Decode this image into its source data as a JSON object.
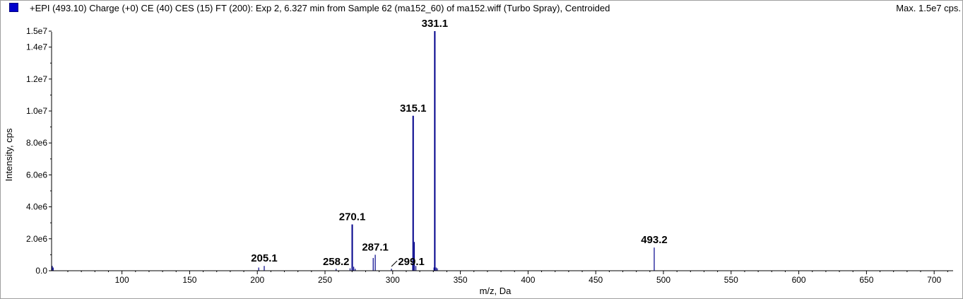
{
  "header": {
    "title": "+EPI (493.10) Charge (+0) CE (40) CES (15) FT (200): Exp 2, 6.327 min from Sample 62 (ma152_60) of ma152.wiff (Turbo Spray), Centroided",
    "max": "Max. 1.5e7 cps."
  },
  "colors": {
    "series": "#00008b",
    "legend": "#0000cc"
  },
  "chart_data": {
    "type": "bar",
    "xlabel": "m/z, Da",
    "ylabel": "Intensity, cps",
    "xlim": [
      48,
      714
    ],
    "ylim": [
      0,
      15400000
    ],
    "x_ticks": [
      100,
      150,
      200,
      250,
      300,
      350,
      400,
      450,
      500,
      550,
      600,
      650,
      700
    ],
    "x_tick_labels": [
      "100",
      "150",
      "200",
      "250",
      "300",
      "350",
      "400",
      "450",
      "500",
      "550",
      "600",
      "650",
      "700"
    ],
    "y_ticks": [
      0,
      2000000,
      4000000,
      6000000,
      8000000,
      10000000,
      12000000,
      14000000,
      15000000
    ],
    "y_tick_labels": [
      "0.0",
      "2.0e6",
      "4.0e6",
      "6.0e6",
      "8.0e6",
      "1.0e7",
      "1.2e7",
      "1.4e7",
      "1.5e7"
    ],
    "peaks": [
      {
        "mz": 48.5,
        "intensity": 300000
      },
      {
        "mz": 49.2,
        "intensity": 200000
      },
      {
        "mz": 201.0,
        "intensity": 200000
      },
      {
        "mz": 205.1,
        "intensity": 300000
      },
      {
        "mz": 258.2,
        "intensity": 120000
      },
      {
        "mz": 268.5,
        "intensity": 150000
      },
      {
        "mz": 270.1,
        "intensity": 2900000
      },
      {
        "mz": 271.2,
        "intensity": 250000
      },
      {
        "mz": 272.3,
        "intensity": 120000
      },
      {
        "mz": 285.6,
        "intensity": 800000
      },
      {
        "mz": 287.1,
        "intensity": 1000000
      },
      {
        "mz": 299.1,
        "intensity": 120000
      },
      {
        "mz": 314.8,
        "intensity": 450000
      },
      {
        "mz": 315.1,
        "intensity": 9700000
      },
      {
        "mz": 316.0,
        "intensity": 1800000
      },
      {
        "mz": 317.1,
        "intensity": 300000
      },
      {
        "mz": 330.5,
        "intensity": 200000
      },
      {
        "mz": 331.1,
        "intensity": 15000000
      },
      {
        "mz": 332.1,
        "intensity": 200000
      },
      {
        "mz": 333.0,
        "intensity": 150000
      },
      {
        "mz": 493.2,
        "intensity": 1450000
      }
    ],
    "labels": [
      {
        "text": "205.1",
        "mz": 205.1,
        "intensity": 300000,
        "dx": 0,
        "leader": false
      },
      {
        "text": "258.2",
        "mz": 258.2,
        "intensity": 0,
        "dx": 0,
        "leader": false
      },
      {
        "text": "270.1",
        "mz": 270.1,
        "intensity": 2900000,
        "dx": 0,
        "leader": false
      },
      {
        "text": "287.1",
        "mz": 287.1,
        "intensity": 1000000,
        "dx": 0,
        "leader": false
      },
      {
        "text": "299.1",
        "mz": 299.1,
        "intensity": 0,
        "dx": 28,
        "leader": true
      },
      {
        "text": "315.1",
        "mz": 315.1,
        "intensity": 9700000,
        "dx": 0,
        "leader": false
      },
      {
        "text": "331.1",
        "mz": 331.1,
        "intensity": 15000000,
        "dx": 0,
        "leader": false
      },
      {
        "text": "493.2",
        "mz": 493.2,
        "intensity": 1450000,
        "dx": 0,
        "leader": false
      }
    ]
  }
}
